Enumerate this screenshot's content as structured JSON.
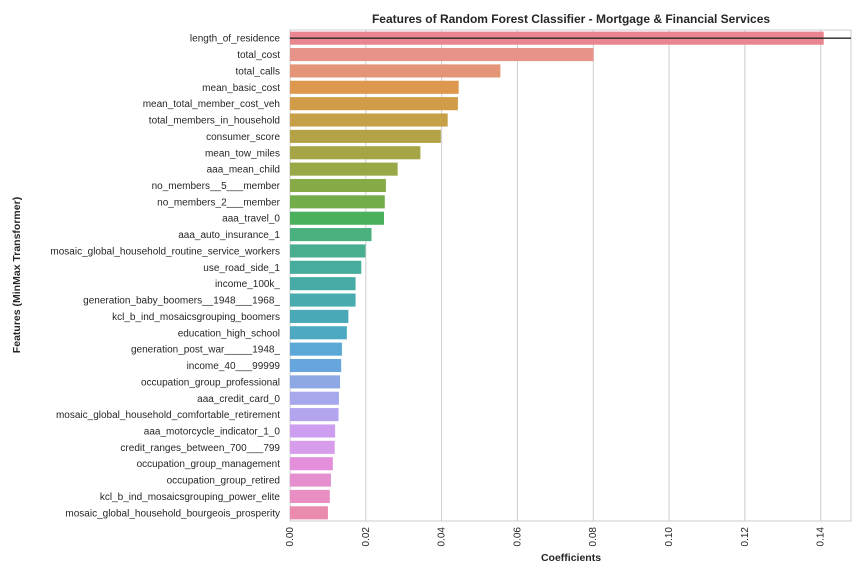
{
  "chart_data": {
    "type": "bar",
    "orientation": "horizontal",
    "title": "Features of Random Forest Classifier - Mortgage & Financial Services",
    "xlabel": "Coefficients",
    "ylabel": "Features (MinMax Transformer)",
    "xlim": [
      0,
      0.148
    ],
    "xticks": [
      "0.00",
      "0.02",
      "0.04",
      "0.06",
      "0.08",
      "0.10",
      "0.12",
      "0.14"
    ],
    "xtick_values": [
      0,
      0.02,
      0.04,
      0.06,
      0.08,
      0.1,
      0.12,
      0.14
    ],
    "grid": true,
    "categories": [
      "length_of_residence",
      "total_cost",
      "total_calls",
      "mean_basic_cost",
      "mean_total_member_cost_veh",
      "total_members_in_household",
      "consumer_score",
      "mean_tow_miles",
      "aaa_mean_child",
      "no_members__5___member",
      "no_members_2___member",
      "aaa_travel_0",
      "aaa_auto_insurance_1",
      "mosaic_global_household_routine_service_workers",
      "use_road_side_1",
      "income_100k_",
      "generation_baby_boomers__1948___1968_",
      "kcl_b_ind_mosaicsgrouping_boomers",
      "education_high_school",
      "generation_post_war_____1948_",
      "income_40___99999",
      "occupation_group_professional",
      "aaa_credit_card_0",
      "mosaic_global_household_comfortable_retirement",
      "aaa_motorcycle_indicator_1_0",
      "credit_ranges_between_700___799",
      "occupation_group_management",
      "occupation_group_retired",
      "kcl_b_ind_mosaicsgrouping_power_elite",
      "mosaic_global_household_bourgeois_prosperity"
    ],
    "values": [
      0.1408,
      0.0801,
      0.0555,
      0.0445,
      0.0443,
      0.0416,
      0.0398,
      0.0344,
      0.0284,
      0.0253,
      0.025,
      0.0248,
      0.0215,
      0.0199,
      0.0188,
      0.0173,
      0.0173,
      0.0154,
      0.015,
      0.0137,
      0.0135,
      0.0132,
      0.0129,
      0.0128,
      0.0119,
      0.0118,
      0.0113,
      0.0108,
      0.0105,
      0.01
    ],
    "colors": [
      "#e9858e",
      "#e8938a",
      "#e59577",
      "#dd984e",
      "#d19c48",
      "#c5a047",
      "#b3a346",
      "#a6a546",
      "#98a846",
      "#86ab46",
      "#73ad4a",
      "#4ab05c",
      "#4ab07d",
      "#48ae8f",
      "#46ad9c",
      "#47aba5",
      "#48abae",
      "#4aa9b7",
      "#4ca9c0",
      "#5aa8d5",
      "#67a6dd",
      "#8ea8e6",
      "#a6a7ec",
      "#b4a4ef",
      "#cd9ef0",
      "#d79cea",
      "#e38fdc",
      "#e68fcf",
      "#e98ec3",
      "#ea8aae"
    ],
    "reference_line": {
      "value": 0.1408,
      "color": "#262626"
    }
  }
}
